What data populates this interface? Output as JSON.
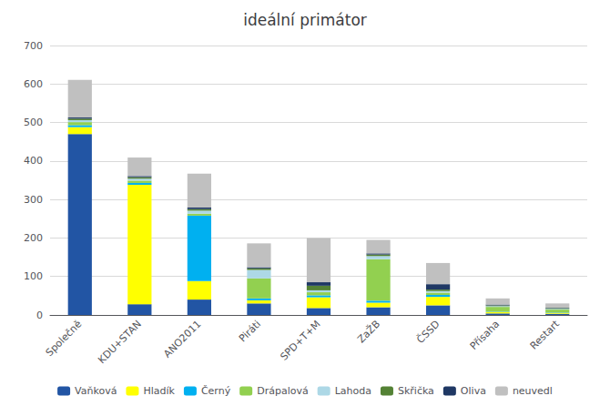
{
  "chart_data": {
    "type": "bar",
    "title": "ideální primátor",
    "categories": [
      "Společně",
      "KDU+STAN",
      "ANO2011",
      "Piráti",
      "SPD+T+M",
      "ZaŽB",
      "ČSSD",
      "Přísaha",
      "Restart"
    ],
    "series": [
      {
        "name": "Vaňková",
        "color": "#2255a4",
        "values": [
          470,
          28,
          40,
          30,
          18,
          20,
          25,
          4,
          3
        ]
      },
      {
        "name": "Hladík",
        "color": "#ffff00",
        "values": [
          18,
          310,
          48,
          8,
          28,
          12,
          22,
          4,
          2
        ]
      },
      {
        "name": "Černý",
        "color": "#00b0f0",
        "values": [
          5,
          5,
          170,
          5,
          5,
          5,
          5,
          1,
          1
        ]
      },
      {
        "name": "Drápalová",
        "color": "#92d050",
        "values": [
          8,
          6,
          5,
          52,
          8,
          108,
          6,
          12,
          8
        ]
      },
      {
        "name": "Lahoda",
        "color": "#add8e6",
        "values": [
          5,
          5,
          8,
          22,
          5,
          8,
          4,
          2,
          2
        ]
      },
      {
        "name": "Skřička",
        "color": "#548235",
        "values": [
          4,
          4,
          4,
          4,
          12,
          4,
          4,
          2,
          2
        ]
      },
      {
        "name": "Oliva",
        "color": "#1f3864",
        "values": [
          3,
          3,
          4,
          3,
          9,
          3,
          14,
          2,
          1
        ]
      },
      {
        "name": "neuvedl",
        "color": "#c0c0c0",
        "values": [
          98,
          48,
          88,
          62,
          115,
          35,
          55,
          16,
          11
        ]
      }
    ],
    "stacked": true,
    "ylim": [
      0,
      700
    ],
    "yticks": [
      0,
      100,
      200,
      300,
      400,
      500,
      600,
      700
    ],
    "grid": true,
    "legend": "bottom"
  }
}
